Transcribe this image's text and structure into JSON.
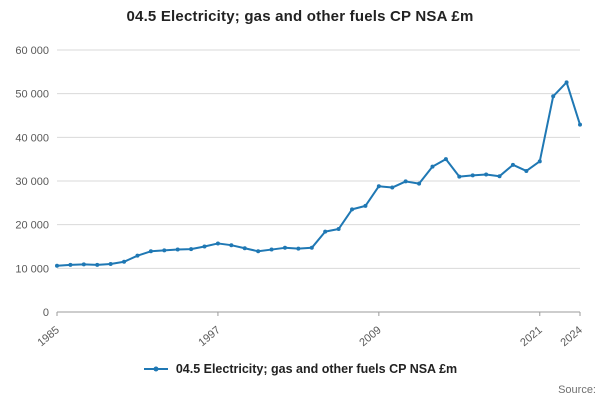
{
  "title": "04.5 Electricity; gas and other fuels CP NSA £m",
  "legend": {
    "label": "04.5 Electricity; gas and other fuels CP NSA £m"
  },
  "source": "Source:",
  "colors": {
    "line": "#1f78b4",
    "grid": "#d9d9d9",
    "axis": "#9b9b9b",
    "tick_text": "#595959",
    "title_text": "#222222"
  },
  "chart_data": {
    "type": "line",
    "title": "04.5 Electricity; gas and other fuels CP NSA £m",
    "xlabel": "",
    "ylabel": "",
    "ylim": [
      0,
      60000
    ],
    "grid": "horizontal",
    "legend_position": "bottom",
    "x": [
      1985,
      1986,
      1987,
      1988,
      1989,
      1990,
      1991,
      1992,
      1993,
      1994,
      1995,
      1996,
      1997,
      1998,
      1999,
      2000,
      2001,
      2002,
      2003,
      2004,
      2005,
      2006,
      2007,
      2008,
      2009,
      2010,
      2011,
      2012,
      2013,
      2014,
      2015,
      2016,
      2017,
      2018,
      2019,
      2020,
      2021,
      2022,
      2023,
      2024
    ],
    "series": [
      {
        "name": "04.5 Electricity; gas and other fuels CP NSA £m",
        "values": [
          10600,
          10800,
          10900,
          10800,
          11000,
          11500,
          12900,
          13900,
          14100,
          14300,
          14400,
          15000,
          15700,
          15300,
          14600,
          13900,
          14300,
          14700,
          14500,
          14700,
          18400,
          19000,
          23500,
          24300,
          28800,
          28500,
          29900,
          29400,
          33300,
          35000,
          31000,
          31300,
          31500,
          31100,
          33700,
          32300,
          34500,
          49400,
          52600,
          42900
        ]
      }
    ],
    "yticks": [
      {
        "v": 0,
        "label": "0"
      },
      {
        "v": 10000,
        "label": "10 000"
      },
      {
        "v": 20000,
        "label": "20 000"
      },
      {
        "v": 30000,
        "label": "30 000"
      },
      {
        "v": 40000,
        "label": "40 000"
      },
      {
        "v": 50000,
        "label": "50 000"
      },
      {
        "v": 60000,
        "label": "60 000"
      }
    ],
    "xticks": [
      {
        "v": 1985,
        "label": "1985"
      },
      {
        "v": 1997,
        "label": "1997"
      },
      {
        "v": 2009,
        "label": "2009"
      },
      {
        "v": 2021,
        "label": "2021"
      },
      {
        "v": 2024,
        "label": "2024"
      }
    ]
  }
}
